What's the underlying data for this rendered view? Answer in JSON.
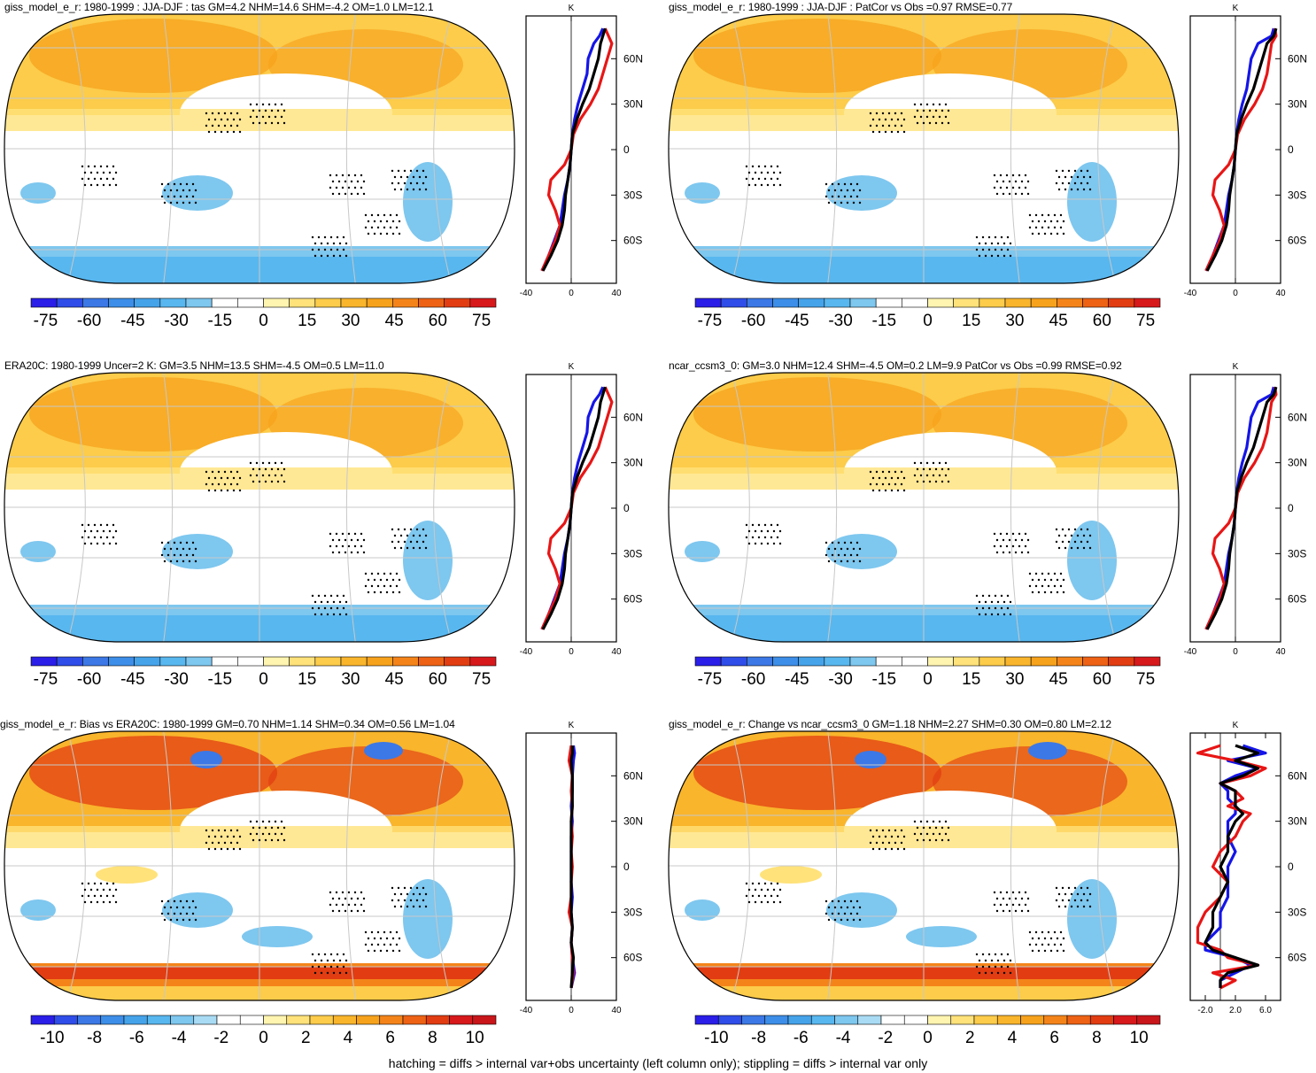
{
  "footer": "hatching = diffs > internal var+obs uncertainty (left column only); stippling = diffs > internal var only",
  "palette": {
    "blue_dark": "#2a1ee8",
    "blue_mid": "#3c78e6",
    "blue_light": "#7ec7ef",
    "white": "#ffffff",
    "yellow": "#ffed8a",
    "orange": "#f7a21c",
    "red": "#d7191c",
    "zonal_blue": "#1515e8",
    "zonal_red": "#e81515",
    "zonal_black": "#000000"
  },
  "chart_data": [
    {
      "id": "p1",
      "type": "heatmap",
      "map_projection": "robinson",
      "title": "giss_model_e_r: 1980-1999 : JJA-DJF : tas GM=4.2 NHM=14.6 SHM=-4.2 OM=1.0 LM=12.1",
      "colorbar": {
        "levels": [
          "-75",
          "-60",
          "-45",
          "-30",
          "-15",
          "0",
          "15",
          "30",
          "45",
          "60",
          "75"
        ],
        "range": [
          -80,
          80
        ]
      },
      "zonal_mean": {
        "xlabel": "K",
        "xticks": [
          "-40",
          "0",
          "40"
        ],
        "xlim": [
          -40,
          40
        ],
        "yticks": [
          "60N",
          "30N",
          "0",
          "30S",
          "60S"
        ],
        "lat": [
          80,
          75,
          70,
          60,
          50,
          40,
          30,
          20,
          10,
          0,
          -10,
          -20,
          -30,
          -40,
          -50,
          -60,
          -70,
          -80
        ],
        "series": [
          {
            "name": "",
            "color": "blue",
            "values": [
              28,
              25,
              20,
              15,
              14,
              10,
              6,
              3,
              1,
              0,
              -1,
              -3,
              -6,
              -8,
              -10,
              -15,
              -20,
              -26
            ]
          },
          {
            "name": "",
            "color": "red",
            "values": [
              30,
              33,
              36,
              32,
              28,
              24,
              17,
              8,
              2,
              0,
              -6,
              -18,
              -20,
              -14,
              -10,
              -14,
              -20,
              -26
            ]
          },
          {
            "name": "",
            "color": "black",
            "values": [
              30,
              28,
              26,
              24,
              20,
              16,
              10,
              5,
              1,
              0,
              -1,
              -3,
              -5,
              -6,
              -8,
              -12,
              -18,
              -25
            ]
          }
        ]
      }
    },
    {
      "id": "p2",
      "type": "heatmap",
      "map_projection": "robinson",
      "title": "giss_model_e_r: 1980-1999 : JJA-DJF : PatCor vs Obs =0.97 RMSE=0.77",
      "colorbar": {
        "levels": [
          "-75",
          "-60",
          "-45",
          "-30",
          "-15",
          "0",
          "15",
          "30",
          "45",
          "60",
          "75"
        ],
        "range": [
          -80,
          80
        ]
      },
      "zonal_mean": {
        "xlabel": "K",
        "xticks": [
          "-40",
          "0",
          "40"
        ],
        "xlim": [
          -40,
          40
        ],
        "yticks": [
          "60N",
          "30N",
          "0",
          "30S",
          "60S"
        ],
        "lat": [
          80,
          75,
          70,
          60,
          50,
          40,
          30,
          20,
          10,
          0,
          -10,
          -20,
          -30,
          -40,
          -50,
          -60,
          -70,
          -80
        ],
        "series": [
          {
            "name": "",
            "color": "blue",
            "values": [
              34,
              32,
              20,
              14,
              12,
              10,
              6,
              3,
              1,
              0,
              -1,
              -3,
              -6,
              -8,
              -10,
              -15,
              -20,
              -26
            ]
          },
          {
            "name": "",
            "color": "red",
            "values": [
              35,
              36,
              32,
              30,
              28,
              24,
              17,
              8,
              2,
              0,
              -6,
              -18,
              -20,
              -14,
              -10,
              -14,
              -20,
              -26
            ]
          },
          {
            "name": "",
            "color": "black",
            "values": [
              36,
              34,
              28,
              24,
              20,
              16,
              10,
              5,
              1,
              0,
              -1,
              -3,
              -5,
              -6,
              -8,
              -12,
              -18,
              -25
            ]
          }
        ]
      }
    },
    {
      "id": "p3",
      "type": "heatmap",
      "map_projection": "robinson",
      "title": "ERA20C: 1980-1999 Uncer=2 K: GM=3.5 NHM=13.5 SHM=-4.5 OM=0.5 LM=11.0",
      "colorbar": {
        "levels": [
          "-75",
          "-60",
          "-45",
          "-30",
          "-15",
          "0",
          "15",
          "30",
          "45",
          "60",
          "75"
        ],
        "range": [
          -80,
          80
        ]
      },
      "zonal_mean": {
        "xlabel": "K",
        "xticks": [
          "-40",
          "0",
          "40"
        ],
        "xlim": [
          -40,
          40
        ],
        "yticks": [
          "60N",
          "30N",
          "0",
          "30S",
          "60S"
        ],
        "lat": [
          80,
          75,
          70,
          60,
          50,
          40,
          30,
          20,
          10,
          0,
          -10,
          -20,
          -30,
          -40,
          -50,
          -60,
          -70,
          -80
        ],
        "series": [
          {
            "name": "",
            "color": "blue",
            "values": [
              28,
              25,
              20,
              15,
              14,
              10,
              6,
              3,
              1,
              0,
              -1,
              -3,
              -6,
              -8,
              -10,
              -15,
              -20,
              -26
            ]
          },
          {
            "name": "",
            "color": "red",
            "values": [
              30,
              33,
              36,
              32,
              28,
              24,
              17,
              8,
              2,
              0,
              -6,
              -18,
              -20,
              -14,
              -10,
              -14,
              -20,
              -26
            ]
          },
          {
            "name": "",
            "color": "black",
            "values": [
              30,
              28,
              26,
              24,
              20,
              16,
              10,
              5,
              1,
              0,
              -1,
              -3,
              -5,
              -6,
              -8,
              -12,
              -18,
              -25
            ]
          }
        ]
      }
    },
    {
      "id": "p4",
      "type": "heatmap",
      "map_projection": "robinson",
      "title": "ncar_ccsm3_0: GM=3.0 NHM=12.4 SHM=-4.5 OM=0.2 LM=9.9 PatCor vs Obs =0.99 RMSE=0.92",
      "colorbar": {
        "levels": [
          "-75",
          "-60",
          "-45",
          "-30",
          "-15",
          "0",
          "15",
          "30",
          "45",
          "60",
          "75"
        ],
        "range": [
          -80,
          80
        ]
      },
      "zonal_mean": {
        "xlabel": "K",
        "xticks": [
          "-40",
          "0",
          "40"
        ],
        "xlim": [
          -40,
          40
        ],
        "yticks": [
          "60N",
          "30N",
          "0",
          "30S",
          "60S"
        ],
        "lat": [
          80,
          75,
          70,
          60,
          50,
          40,
          30,
          20,
          10,
          0,
          -10,
          -20,
          -30,
          -40,
          -50,
          -60,
          -70,
          -80
        ],
        "series": [
          {
            "name": "",
            "color": "blue",
            "values": [
              34,
              32,
              20,
              14,
              12,
              10,
              6,
              3,
              1,
              0,
              -1,
              -3,
              -6,
              -8,
              -10,
              -15,
              -20,
              -26
            ]
          },
          {
            "name": "",
            "color": "red",
            "values": [
              35,
              36,
              32,
              30,
              28,
              24,
              17,
              8,
              2,
              0,
              -6,
              -18,
              -20,
              -14,
              -10,
              -14,
              -20,
              -26
            ]
          },
          {
            "name": "",
            "color": "black",
            "values": [
              36,
              34,
              28,
              24,
              20,
              16,
              10,
              5,
              1,
              0,
              -1,
              -3,
              -5,
              -6,
              -8,
              -12,
              -18,
              -25
            ]
          }
        ]
      }
    },
    {
      "id": "p5",
      "type": "heatmap",
      "map_projection": "robinson",
      "title": "giss_model_e_r: Bias vs ERA20C: 1980-1999 GM=0.70 NHM=1.14 SHM=0.34 OM=0.56 LM=1.04",
      "colorbar": {
        "levels": [
          "-10",
          "-8",
          "-6",
          "-4",
          "-2",
          "0",
          "2",
          "4",
          "6",
          "8",
          "10"
        ],
        "range": [
          -11,
          11
        ]
      },
      "zonal_mean": {
        "xlabel": "K",
        "xticks": [
          "-40",
          "0",
          "40"
        ],
        "xlim": [
          -40,
          40
        ],
        "yticks": [
          "60N",
          "30N",
          "0",
          "30S",
          "60S"
        ],
        "lat": [
          80,
          75,
          70,
          60,
          50,
          40,
          30,
          20,
          10,
          0,
          -10,
          -20,
          -30,
          -40,
          -50,
          -60,
          -70,
          -80
        ],
        "series": [
          {
            "name": "",
            "color": "blue",
            "values": [
              2,
              3,
              2,
              1,
              1,
              0,
              1,
              0,
              0,
              0,
              0,
              1,
              0,
              1,
              0,
              1,
              3,
              0
            ]
          },
          {
            "name": "",
            "color": "red",
            "values": [
              0,
              -1,
              -2,
              1,
              0,
              1,
              0,
              1,
              0,
              1,
              0,
              0,
              -2,
              1,
              0,
              1,
              2,
              0
            ]
          },
          {
            "name": "",
            "color": "black",
            "values": [
              1,
              1,
              0,
              1,
              1,
              1,
              0,
              0,
              0,
              0,
              0,
              0,
              0,
              1,
              0,
              2,
              1,
              0
            ]
          }
        ]
      }
    },
    {
      "id": "p6",
      "type": "heatmap",
      "map_projection": "robinson",
      "title": "giss_model_e_r: Change vs ncar_ccsm3_0 GM=1.18 NHM=2.27 SHM=0.30 OM=0.80 LM=2.12",
      "colorbar": {
        "levels": [
          "-10",
          "-8",
          "-6",
          "-4",
          "-2",
          "0",
          "2",
          "4",
          "6",
          "8",
          "10"
        ],
        "range": [
          -11,
          11
        ]
      },
      "zonal_mean": {
        "xlabel": "K",
        "xticks": [
          "-2.0",
          "2.0",
          "6.0"
        ],
        "xlim": [
          -4,
          8
        ],
        "yticks": [
          "60N",
          "30N",
          "0",
          "30S",
          "60S"
        ],
        "lat": [
          80,
          75,
          70,
          65,
          60,
          55,
          50,
          45,
          40,
          35,
          30,
          20,
          10,
          0,
          -10,
          -20,
          -30,
          -40,
          -50,
          -55,
          -60,
          -65,
          -70,
          -75,
          -80
        ],
        "series": [
          {
            "name": "",
            "color": "blue",
            "values": [
              3,
              6,
              1,
              5,
              2,
              0,
              1,
              1,
              2,
              2,
              1,
              1,
              2,
              1,
              1,
              1,
              0,
              0,
              -2,
              -2,
              2,
              4,
              2,
              0,
              0
            ]
          },
          {
            "name": "",
            "color": "red",
            "values": [
              0,
              -3,
              2,
              6,
              4,
              0,
              2,
              3,
              1,
              4,
              3,
              2,
              0,
              -1,
              1,
              0,
              -2,
              -3,
              -3,
              0,
              1,
              5,
              -1,
              2,
              0
            ]
          },
          {
            "name": "",
            "color": "black",
            "values": [
              2,
              5,
              2,
              5,
              3,
              0,
              2,
              2,
              2,
              3,
              2,
              1,
              1,
              0,
              1,
              0,
              -1,
              -1,
              -2,
              -1,
              2,
              5,
              1,
              0,
              0
            ]
          }
        ]
      }
    }
  ]
}
